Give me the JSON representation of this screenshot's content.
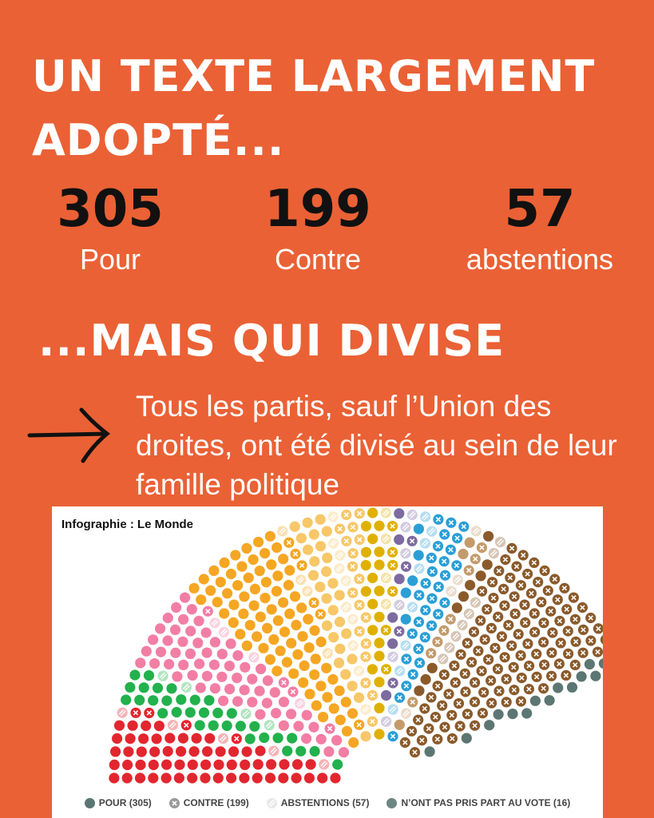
{
  "headline_top": "UN TEXTE LARGEMENT ADOPTÉ...",
  "stats": [
    {
      "value": "305",
      "label": "Pour"
    },
    {
      "value": "199",
      "label": "Contre"
    },
    {
      "value": "57",
      "label": "abstentions"
    }
  ],
  "headline_bottom": "...MAIS QUI DIVISE",
  "description": "Tous les partis, sauf l’Union des droites, ont été divisé au sein de leur famille politique",
  "chart": {
    "credit": "Infographie : Le Monde",
    "legend": [
      {
        "label": "POUR (305)",
        "kind": "pour",
        "color": "#5c7673"
      },
      {
        "label": "CONTRE (199)",
        "kind": "contre",
        "color": "#9a9a9a"
      },
      {
        "label": "ABSTENTIONS (57)",
        "kind": "abstention",
        "color": "#d8d8d8"
      },
      {
        "label": "N’ONT PAS PRIS PART AU VOTE (16)",
        "kind": "absent",
        "color": "#6e8582"
      }
    ]
  },
  "chart_data": {
    "type": "hemicycle",
    "totals": {
      "pour": 305,
      "contre": 199,
      "abstention": 57,
      "absent": 16
    },
    "groups": [
      {
        "color": "#e2262f",
        "pour": 58,
        "contre": 4,
        "abstention": 5,
        "absent": 0
      },
      {
        "color": "#22b14c",
        "pour": 32,
        "contre": 0,
        "abstention": 4,
        "absent": 0
      },
      {
        "color": "#f27ea4",
        "pour": 62,
        "contre": 4,
        "abstention": 4,
        "absent": 0
      },
      {
        "color": "#f5a623",
        "pour": 82,
        "contre": 6,
        "abstention": 4,
        "absent": 0
      },
      {
        "color": "#f7c768",
        "pour": 28,
        "contre": 18,
        "abstention": 10,
        "absent": 0
      },
      {
        "color": "#e0b000",
        "pour": 20,
        "contre": 6,
        "abstention": 4,
        "absent": 0
      },
      {
        "color": "#7d6aa0",
        "pour": 6,
        "contre": 4,
        "abstention": 6,
        "absent": 0
      },
      {
        "color": "#2a9fd6",
        "pour": 5,
        "contre": 30,
        "abstention": 8,
        "absent": 0
      },
      {
        "color": "#c39b6c",
        "pour": 3,
        "contre": 8,
        "abstention": 4,
        "absent": 0
      },
      {
        "color": "#8a5a2b",
        "pour": 9,
        "contre": 119,
        "abstention": 8,
        "absent": 0
      },
      {
        "color": "#5c7673",
        "pour": 0,
        "contre": 0,
        "abstention": 0,
        "absent": 16
      }
    ]
  }
}
